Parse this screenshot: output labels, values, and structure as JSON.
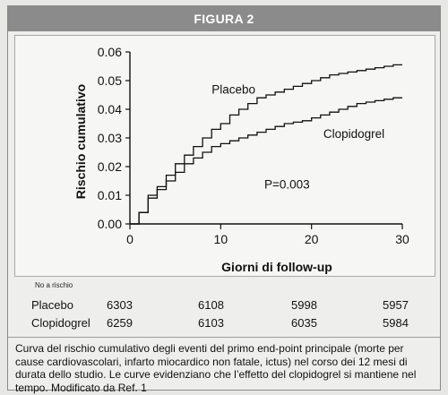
{
  "figure_title": "FIGURA 2",
  "chart_data": {
    "type": "line",
    "title": "",
    "xlabel": "Giorni di follow-up",
    "ylabel": "Rischio cumulativo",
    "xlim": [
      0,
      30
    ],
    "ylim": [
      0,
      0.06
    ],
    "x_ticks": [
      "0",
      "10",
      "20",
      "30"
    ],
    "y_ticks": [
      "0.00",
      "0.01",
      "0.02",
      "0.03",
      "0.04",
      "0.05",
      "0.06"
    ],
    "grid": false,
    "step": true,
    "annotation": "P=0.003",
    "series": [
      {
        "name": "Placebo",
        "x": [
          0,
          1,
          2,
          3,
          4,
          5,
          6,
          7,
          8,
          9,
          10,
          11,
          12,
          13,
          14,
          15,
          16,
          17,
          18,
          19,
          20,
          21,
          22,
          23,
          24,
          25,
          26,
          27,
          28,
          29,
          30
        ],
        "y": [
          0,
          0.004,
          0.01,
          0.013,
          0.017,
          0.021,
          0.024,
          0.027,
          0.03,
          0.033,
          0.035,
          0.038,
          0.04,
          0.042,
          0.044,
          0.045,
          0.046,
          0.047,
          0.048,
          0.049,
          0.05,
          0.051,
          0.052,
          0.0525,
          0.053,
          0.0535,
          0.054,
          0.0545,
          0.055,
          0.0555,
          0.0555
        ]
      },
      {
        "name": "Clopidogrel",
        "x": [
          0,
          1,
          2,
          3,
          4,
          5,
          6,
          7,
          8,
          9,
          10,
          11,
          12,
          13,
          14,
          15,
          16,
          17,
          18,
          19,
          20,
          21,
          22,
          23,
          24,
          25,
          26,
          27,
          28,
          29,
          30
        ],
        "y": [
          0,
          0.004,
          0.009,
          0.012,
          0.015,
          0.018,
          0.021,
          0.023,
          0.025,
          0.027,
          0.028,
          0.029,
          0.03,
          0.031,
          0.032,
          0.033,
          0.034,
          0.035,
          0.0355,
          0.036,
          0.037,
          0.038,
          0.039,
          0.04,
          0.041,
          0.042,
          0.0425,
          0.043,
          0.0435,
          0.044,
          0.044
        ]
      }
    ]
  },
  "risk_table": {
    "caption": "No a rischio",
    "rows": [
      {
        "label": "Placebo",
        "values": [
          "6303",
          "6108",
          "5998",
          "5957"
        ]
      },
      {
        "label": "Clopidogrel",
        "values": [
          "6259",
          "6103",
          "6035",
          "5984"
        ]
      }
    ]
  },
  "caption": "Curva del rischio cumulativo degli eventi del primo end-point principale (morte per cause cardiovascolari, infarto miocardico non fatale, ictus) nel corso dei 12 mesi di durata dello studio. Le curve evidenziano che l’effetto del clopidogrel si mantiene nel tempo. Modificato da Ref. 1"
}
